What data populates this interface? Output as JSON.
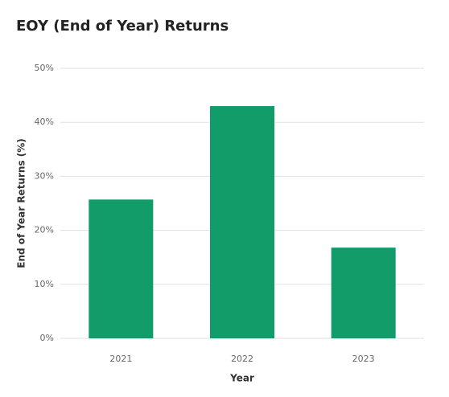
{
  "chart_data": {
    "type": "bar",
    "title": "EOY (End of Year) Returns",
    "x_label": "Year",
    "y_label": "End of Year Returns (%)",
    "categories": [
      "2021",
      "2022",
      "2023"
    ],
    "values": [
      25.7,
      43.0,
      16.8
    ],
    "color": "#119c6a",
    "ylim": [
      0,
      50
    ],
    "yticks": [
      {
        "value": 0,
        "label": "0%"
      },
      {
        "value": 10,
        "label": "10%"
      },
      {
        "value": 20,
        "label": "20%"
      },
      {
        "value": 30,
        "label": "30%"
      },
      {
        "value": 40,
        "label": "40%"
      },
      {
        "value": 50,
        "label": "50%"
      }
    ],
    "grid": true
  }
}
